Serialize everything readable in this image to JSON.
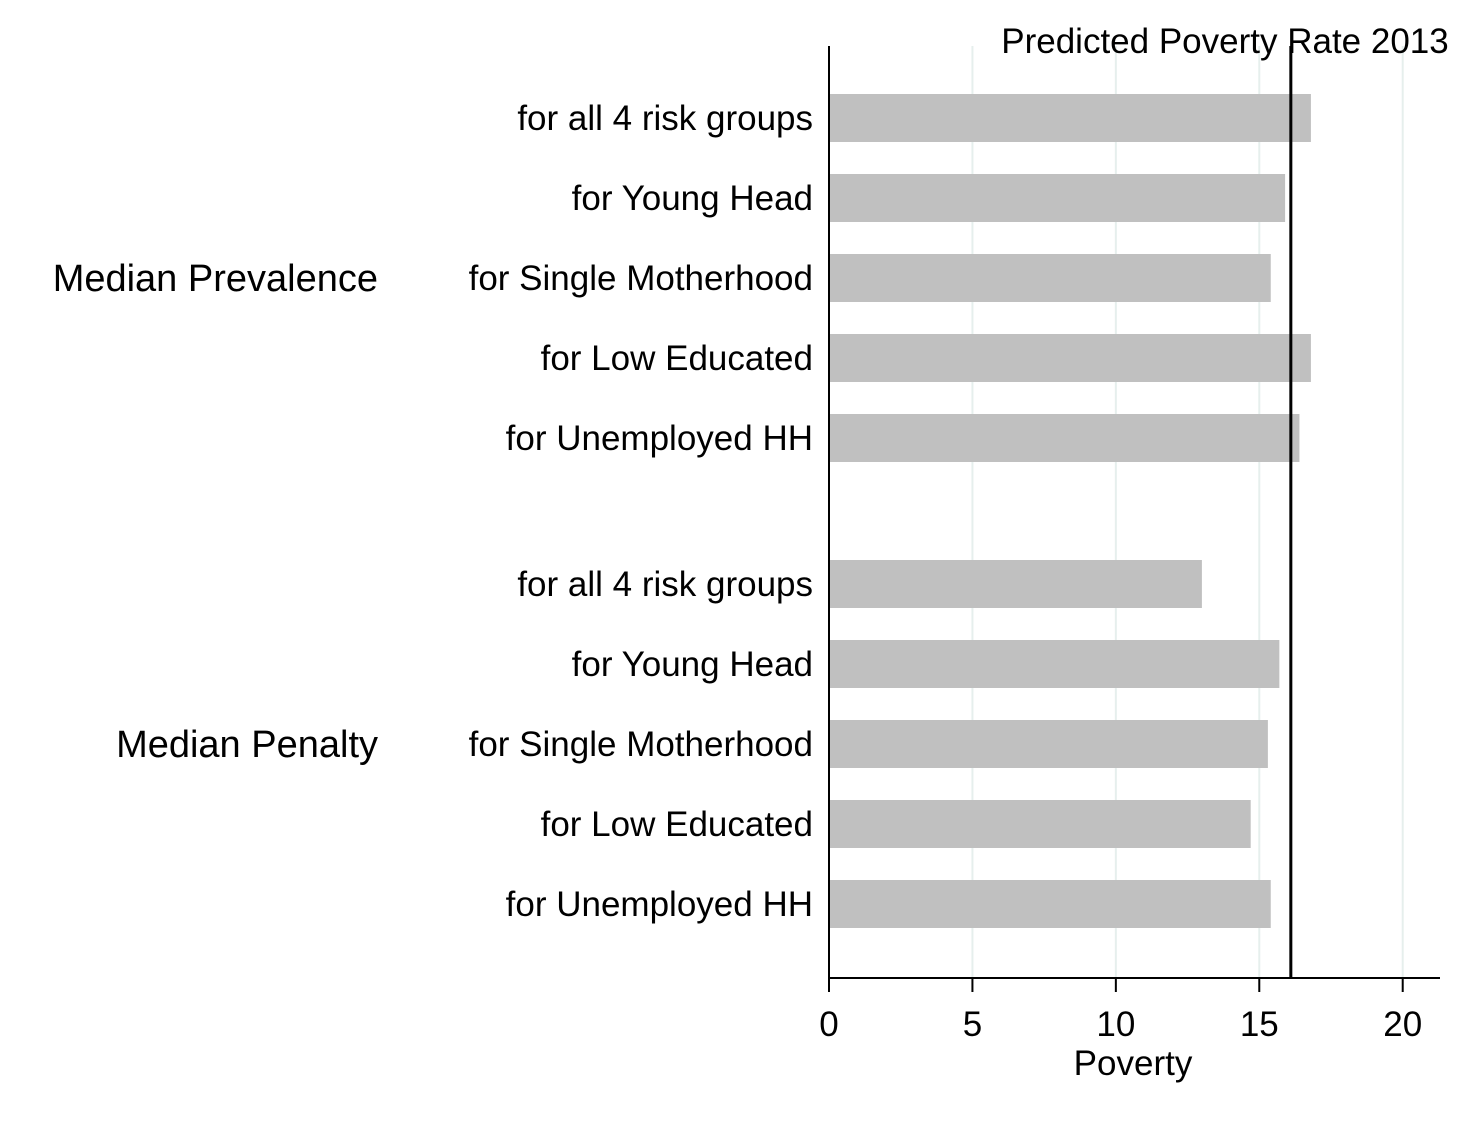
{
  "chart_data": {
    "type": "bar",
    "orientation": "horizontal",
    "groups": [
      {
        "name": "Median Prevalence",
        "categories": [
          "for all 4 risk groups",
          "for Young Head",
          "for Single Motherhood",
          "for Low Educated",
          "for Unemployed HH"
        ],
        "values": [
          16.8,
          15.9,
          15.4,
          16.8,
          16.4
        ]
      },
      {
        "name": "Median Penalty",
        "categories": [
          "for all 4 risk groups",
          "for Young Head",
          "for Single Motherhood",
          "for Low Educated",
          "for Unemployed HH"
        ],
        "values": [
          13.0,
          15.7,
          15.3,
          14.7,
          15.4
        ]
      }
    ],
    "xlabel": "Poverty",
    "xlim": [
      0,
      21.3
    ],
    "xticks": [
      0,
      5,
      10,
      15,
      20
    ],
    "reference_line": {
      "value": 16.1,
      "label": "Predicted Poverty Rate 2013"
    },
    "gridlines": "vertical",
    "bar_color": "#c0c0c0",
    "grid_color": "#e6efed",
    "line_color": "#000000"
  }
}
